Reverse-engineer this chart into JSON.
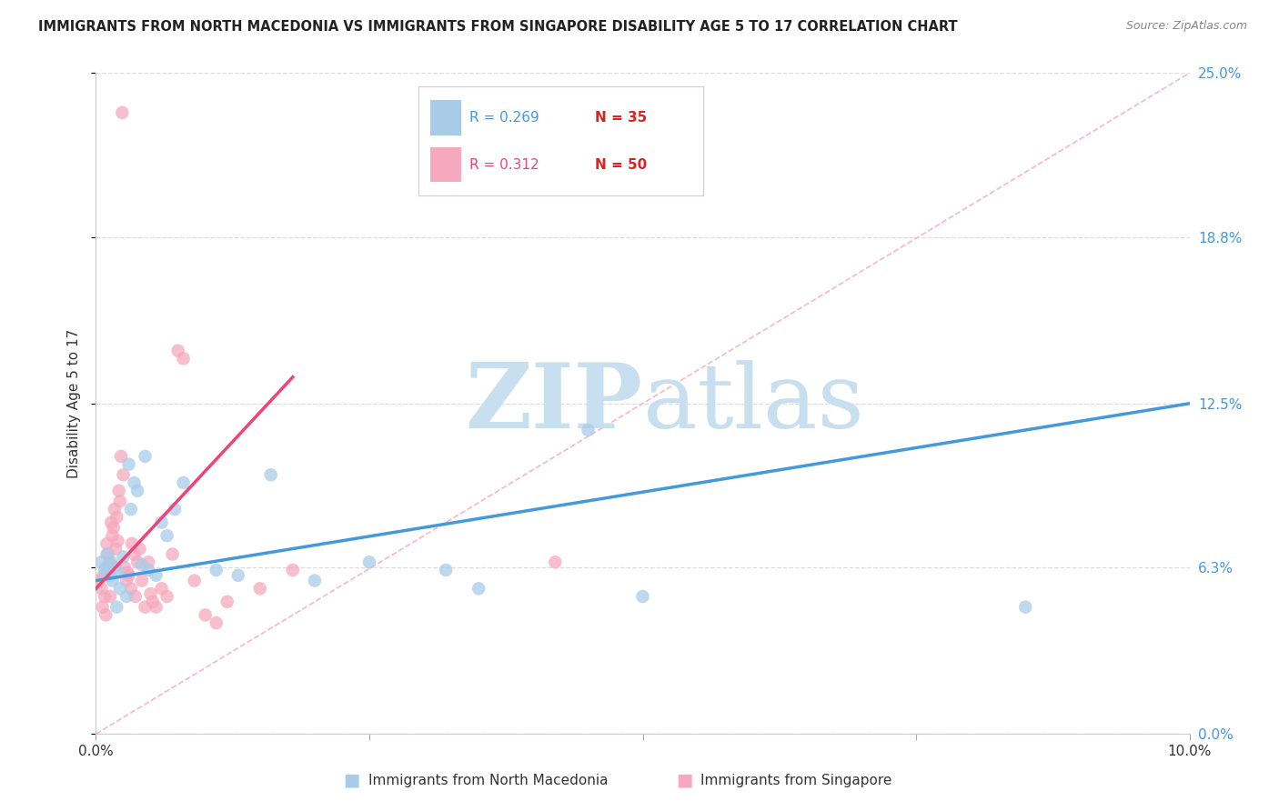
{
  "title": "IMMIGRANTS FROM NORTH MACEDONIA VS IMMIGRANTS FROM SINGAPORE DISABILITY AGE 5 TO 17 CORRELATION CHART",
  "source": "Source: ZipAtlas.com",
  "ylabel": "Disability Age 5 to 17",
  "ylabel_ticks_labels": [
    "0.0%",
    "6.3%",
    "12.5%",
    "18.8%",
    "25.0%"
  ],
  "ylabel_ticks_values": [
    0.0,
    6.3,
    12.5,
    18.8,
    25.0
  ],
  "xlim": [
    0.0,
    10.0
  ],
  "ylim": [
    0.0,
    25.0
  ],
  "legend_blue_r": "0.269",
  "legend_blue_n": "35",
  "legend_pink_r": "0.312",
  "legend_pink_n": "50",
  "blue_color": "#a8cce8",
  "pink_color": "#f5a8be",
  "blue_line_color": "#4499dd",
  "pink_line_color": "#ee4477",
  "diagonal_color": "#f5b8c8",
  "watermark_zip_color": "#c8dff0",
  "watermark_atlas_color": "#c8dff0",
  "blue_scatter_x": [
    0.05,
    0.08,
    0.1,
    0.12,
    0.15,
    0.18,
    0.2,
    0.22,
    0.25,
    0.28,
    0.32,
    0.35,
    0.38,
    0.42,
    0.48,
    0.55,
    0.6,
    0.65,
    0.72,
    0.8,
    1.1,
    1.3,
    1.6,
    2.0,
    2.5,
    3.2,
    3.5,
    4.5,
    5.0,
    8.5,
    0.09,
    0.14,
    0.19,
    0.3,
    0.45
  ],
  "blue_scatter_y": [
    6.5,
    6.2,
    6.8,
    6.0,
    5.8,
    6.3,
    6.1,
    5.5,
    6.7,
    5.2,
    8.5,
    9.5,
    9.2,
    6.4,
    6.2,
    6.0,
    8.0,
    7.5,
    8.5,
    9.5,
    6.2,
    6.0,
    9.8,
    5.8,
    6.5,
    6.2,
    5.5,
    11.5,
    5.2,
    4.8,
    6.3,
    6.5,
    4.8,
    10.2,
    10.5
  ],
  "pink_scatter_x": [
    0.03,
    0.05,
    0.07,
    0.08,
    0.1,
    0.11,
    0.12,
    0.14,
    0.15,
    0.16,
    0.17,
    0.18,
    0.19,
    0.2,
    0.21,
    0.22,
    0.23,
    0.25,
    0.26,
    0.28,
    0.29,
    0.3,
    0.32,
    0.33,
    0.35,
    0.36,
    0.38,
    0.4,
    0.42,
    0.45,
    0.48,
    0.5,
    0.52,
    0.55,
    0.6,
    0.65,
    0.7,
    0.75,
    0.8,
    0.9,
    1.0,
    1.1,
    1.2,
    1.5,
    1.8,
    4.2,
    0.06,
    0.09,
    0.13,
    0.24
  ],
  "pink_scatter_y": [
    5.8,
    5.5,
    6.0,
    5.2,
    7.2,
    6.8,
    6.5,
    8.0,
    7.5,
    7.8,
    8.5,
    7.0,
    8.2,
    7.3,
    9.2,
    8.8,
    10.5,
    9.8,
    6.3,
    5.8,
    6.1,
    6.0,
    5.5,
    7.2,
    6.8,
    5.2,
    6.5,
    7.0,
    5.8,
    4.8,
    6.5,
    5.3,
    5.0,
    4.8,
    5.5,
    5.2,
    6.8,
    14.5,
    14.2,
    5.8,
    4.5,
    4.2,
    5.0,
    5.5,
    6.2,
    6.5,
    4.8,
    4.5,
    5.2,
    23.5
  ],
  "blue_line_x": [
    0.0,
    10.0
  ],
  "blue_line_y": [
    5.8,
    12.5
  ],
  "pink_line_x": [
    0.0,
    1.8
  ],
  "pink_line_y": [
    5.5,
    13.5
  ],
  "diag_line_x": [
    0.0,
    10.0
  ],
  "diag_line_y": [
    0.0,
    25.0
  ],
  "bottom_label_blue": "Immigrants from North Macedonia",
  "bottom_label_pink": "Immigrants from Singapore"
}
